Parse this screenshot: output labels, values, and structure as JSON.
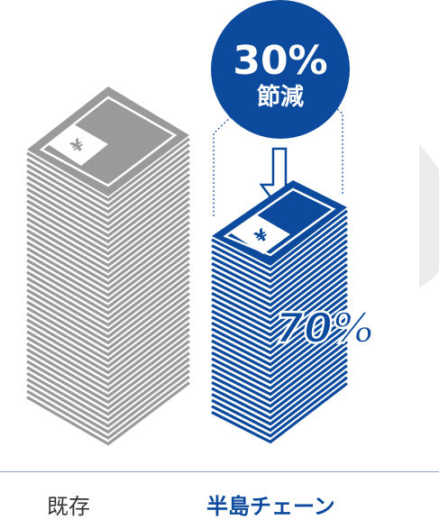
{
  "reduction_badge": {
    "percent": "30%",
    "label": "節減"
  },
  "remaining_label": "70%",
  "captions": {
    "existing": "既存",
    "hando_chain": "半島チェーン"
  },
  "colors": {
    "gray_stack": "#9a9a9a",
    "blue_stack": "#0b4a9c",
    "badge": "#0b4a9c",
    "side_panel": "#ececec"
  }
}
